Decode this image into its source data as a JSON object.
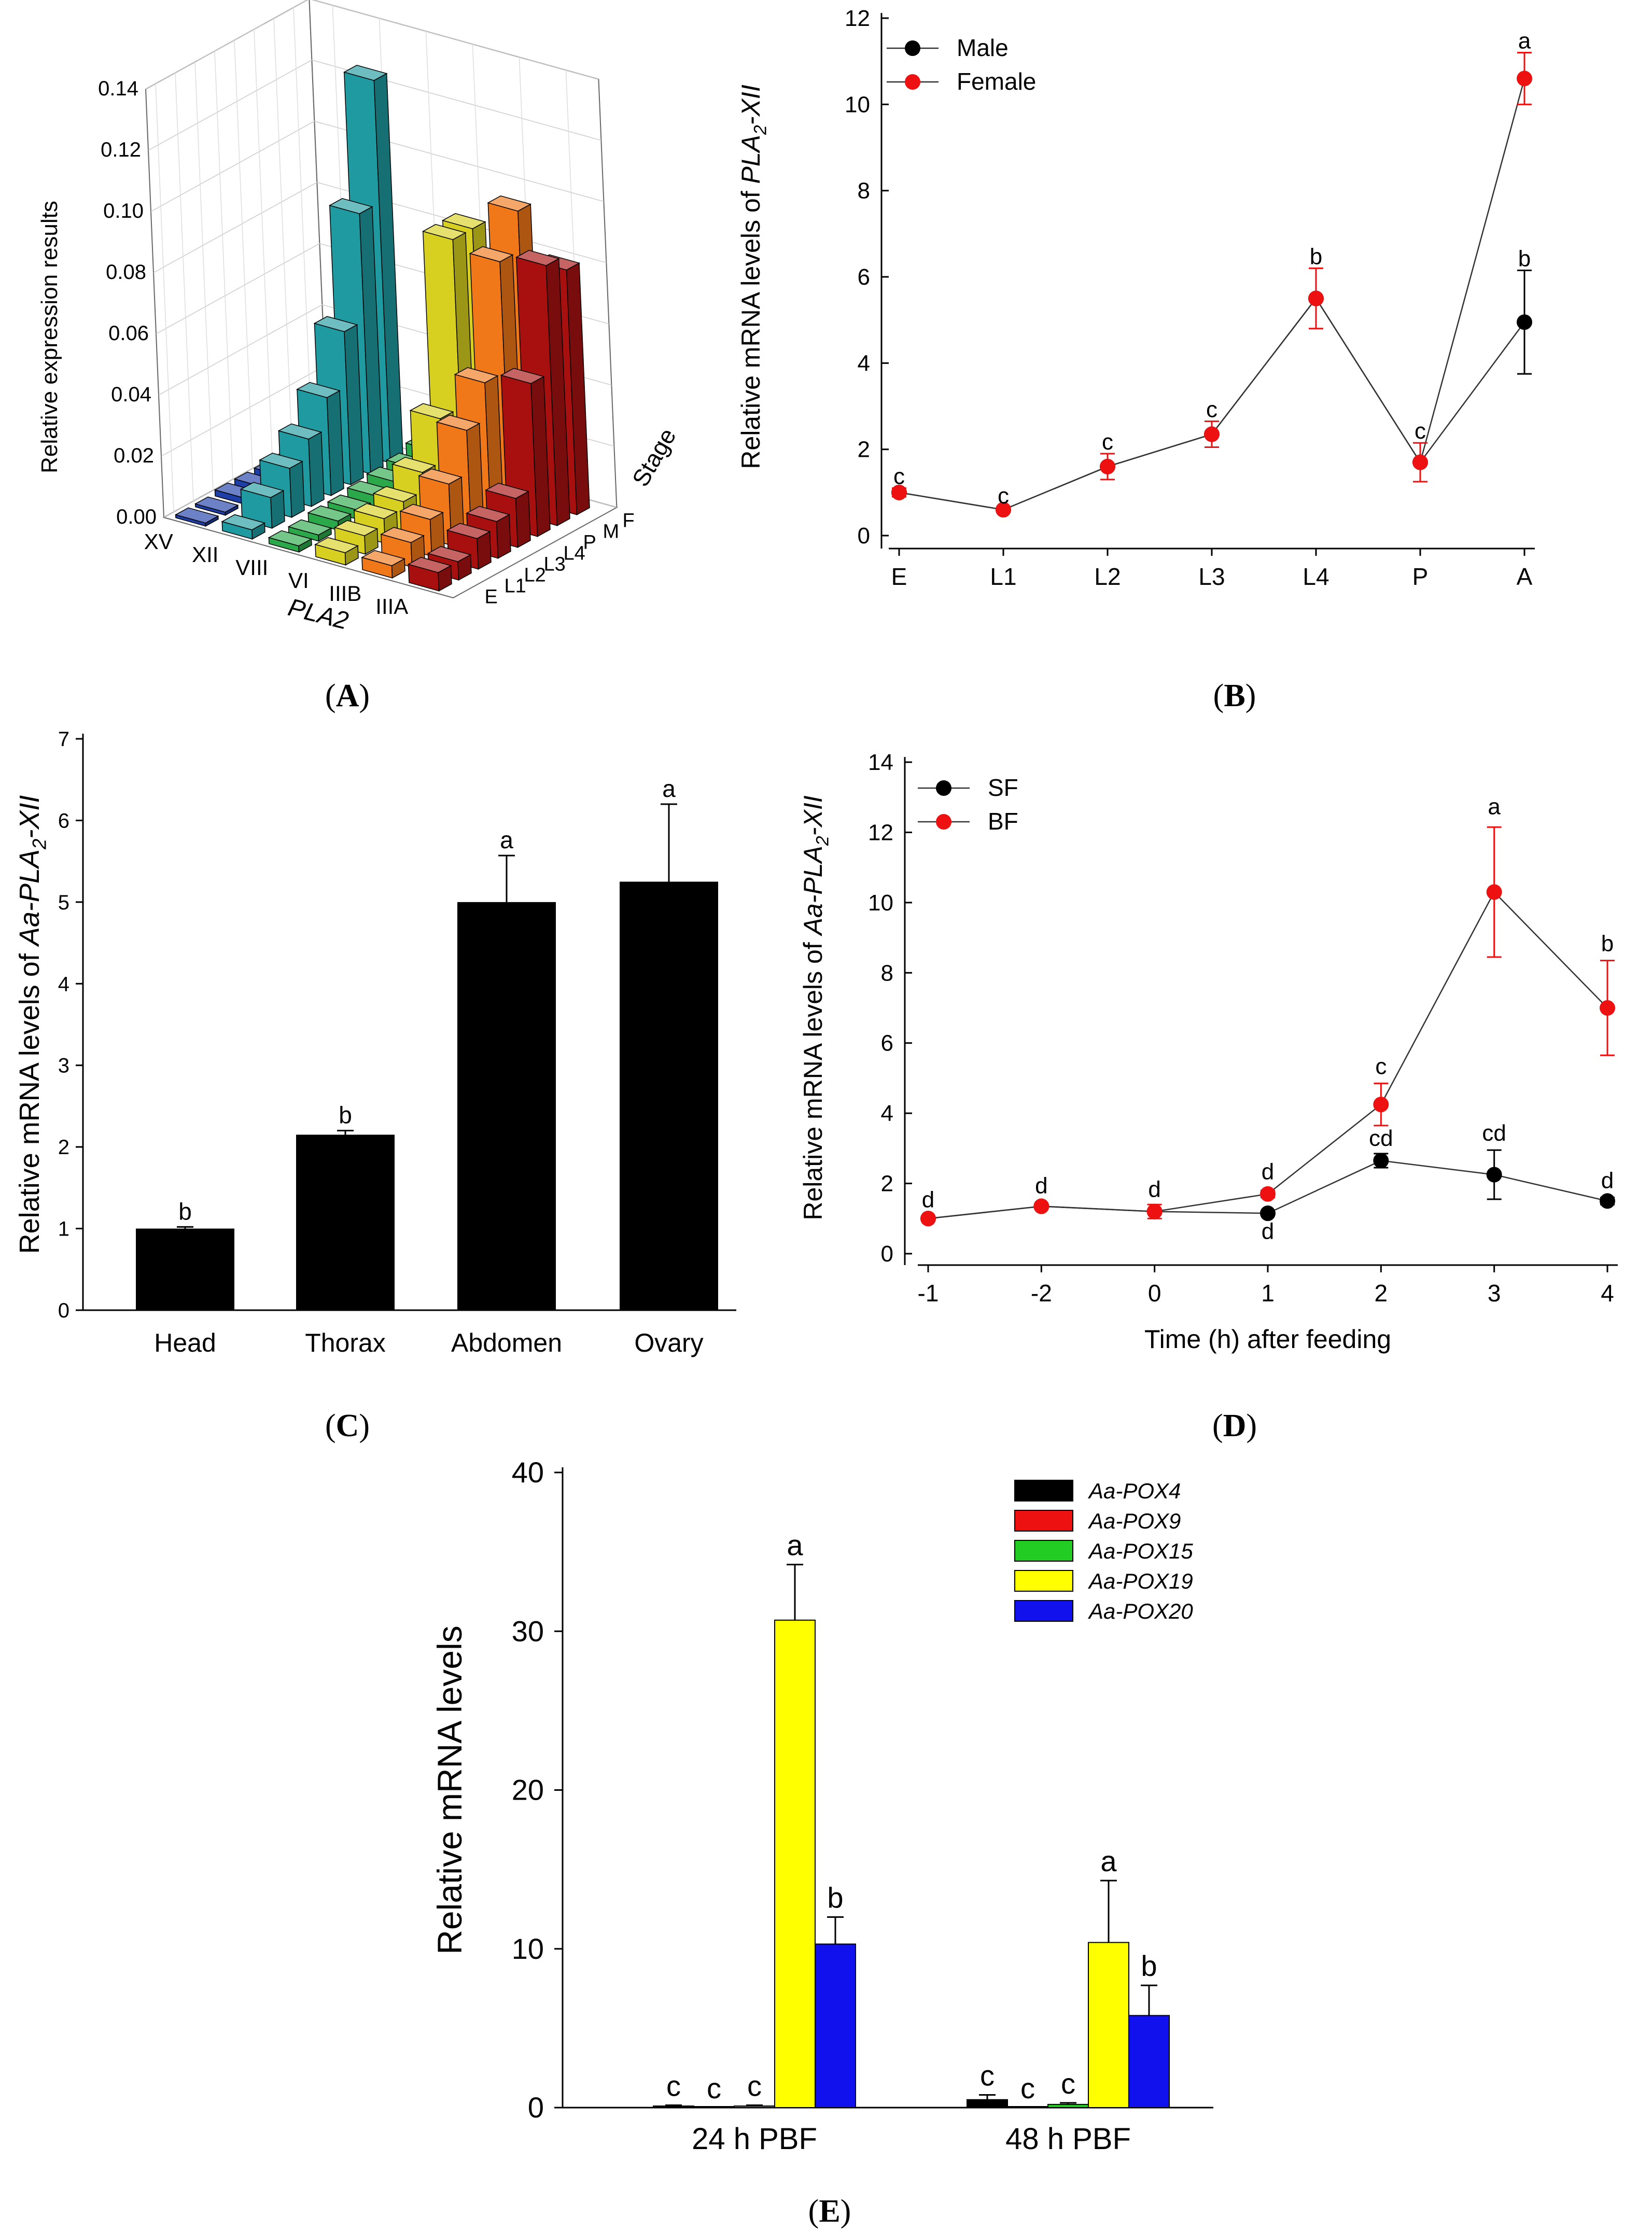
{
  "chart_data": [
    {
      "panel": "A",
      "type": "bar3d",
      "panel_label": "A",
      "zlabel": "Relative expression results",
      "xlabel": "PLA2",
      "ylabel": "Stage",
      "z_ticks": [
        "0.00",
        "0.02",
        "0.04",
        "0.06",
        "0.08",
        "0.10",
        "0.12",
        "0.14"
      ],
      "zlim": [
        0,
        0.14
      ],
      "categories": [
        "XV",
        "XII",
        "VIII",
        "VI",
        "IIIB",
        "IIIA"
      ],
      "stages": [
        "E",
        "L1",
        "L2",
        "L3",
        "L4",
        "P",
        "M",
        "F"
      ],
      "colors": [
        "#1f3fa8",
        "#1f9aa0",
        "#2aa84a",
        "#d8d020",
        "#f07818",
        "#a81010"
      ],
      "values": [
        [
          0.001,
          0.001,
          0.002,
          0.002,
          0.002,
          0.002,
          0.002,
          0.003
        ],
        [
          0.003,
          0.01,
          0.016,
          0.022,
          0.032,
          0.05,
          0.085,
          0.125
        ],
        [
          0.002,
          0.002,
          0.003,
          0.003,
          0.004,
          0.005,
          0.006,
          0.008
        ],
        [
          0.004,
          0.006,
          0.008,
          0.01,
          0.016,
          0.03,
          0.085,
          0.085
        ],
        [
          0.004,
          0.008,
          0.012,
          0.02,
          0.034,
          0.046,
          0.082,
          0.095
        ],
        [
          0.006,
          0.006,
          0.01,
          0.012,
          0.016,
          0.05,
          0.085,
          0.08
        ]
      ]
    },
    {
      "panel": "B",
      "type": "line",
      "panel_label": "B",
      "ylabel_pre": "Relative mRNA levels of ",
      "ylabel_gene": "PLA",
      "ylabel_sub": "2",
      "ylabel_post": "-XII",
      "categories": [
        "E",
        "L1",
        "L2",
        "L3",
        "L4",
        "P",
        "A"
      ],
      "ylim": [
        0,
        12
      ],
      "yticks": [
        "0",
        "2",
        "4",
        "6",
        "8",
        "10",
        "12"
      ],
      "series": [
        {
          "name": "Male",
          "color": "#000000",
          "values": [
            1.0,
            0.6,
            1.6,
            2.35,
            5.5,
            1.7,
            4.95
          ],
          "errors": [
            0,
            0,
            0,
            0,
            0,
            0,
            1.2
          ]
        },
        {
          "name": "Female",
          "color": "#ee1111",
          "values": [
            1.0,
            0.6,
            1.6,
            2.35,
            5.5,
            1.7,
            10.6
          ],
          "errors": [
            0.1,
            0.05,
            0.3,
            0.3,
            0.7,
            0.45,
            0.6
          ]
        }
      ],
      "letters": [
        {
          "i": 0,
          "text": "c",
          "y": 1.1
        },
        {
          "i": 1,
          "text": "c",
          "y": 0.65
        },
        {
          "i": 2,
          "text": "c",
          "y": 1.9
        },
        {
          "i": 3,
          "text": "c",
          "y": 2.65
        },
        {
          "i": 4,
          "text": "b",
          "y": 6.2
        },
        {
          "i": 5,
          "text": "c",
          "y": 2.15
        },
        {
          "i": 6,
          "text": "a",
          "y": 11.2
        },
        {
          "i": 6,
          "text": "b",
          "y": 6.15
        }
      ]
    },
    {
      "panel": "C",
      "type": "bar",
      "panel_label": "C",
      "ylabel_pre": "Relative mRNA levels of ",
      "ylabel_gene": "Aa-PLA",
      "ylabel_sub": "2",
      "ylabel_post": "-XII",
      "categories": [
        "Head",
        "Thorax",
        "Abdomen",
        "Ovary"
      ],
      "values": [
        1.0,
        2.15,
        5.0,
        5.25
      ],
      "errors": [
        0.02,
        0.05,
        0.57,
        0.95
      ],
      "letters": [
        "b",
        "b",
        "a",
        "a"
      ],
      "ylim": [
        0,
        7
      ],
      "yticks": [
        "0",
        "1",
        "2",
        "3",
        "4",
        "5",
        "6",
        "7"
      ],
      "color": "#000000"
    },
    {
      "panel": "D",
      "type": "line",
      "panel_label": "D",
      "ylabel_pre": "Relative mRNA levels of ",
      "ylabel_gene": "Aa-PLA",
      "ylabel_sub": "2",
      "ylabel_post": "-XII",
      "xlabel": "Time (h) after feeding",
      "categories": [
        "-1",
        "-2",
        "0",
        "1",
        "2",
        "3",
        "4"
      ],
      "ylim": [
        0,
        14
      ],
      "yticks": [
        "0",
        "2",
        "4",
        "6",
        "8",
        "10",
        "12",
        "14"
      ],
      "series": [
        {
          "name": "SF",
          "color": "#000000",
          "values": [
            1.0,
            1.35,
            1.2,
            1.15,
            2.65,
            2.25,
            1.5
          ],
          "errors": [
            0,
            0,
            0,
            0,
            0.2,
            0.7,
            0.1
          ]
        },
        {
          "name": "BF",
          "color": "#ee1111",
          "values": [
            1.0,
            1.35,
            1.2,
            1.7,
            4.25,
            10.3,
            7.0
          ],
          "errors": [
            0.05,
            0.05,
            0.2,
            0.1,
            0.6,
            1.85,
            1.35
          ]
        }
      ],
      "letters": [
        {
          "i": 0,
          "text": "d",
          "y": 1.2
        },
        {
          "i": 1,
          "text": "d",
          "y": 1.6
        },
        {
          "i": 2,
          "text": "d",
          "y": 1.5
        },
        {
          "i": 3,
          "text": "d",
          "y": 2.0
        },
        {
          "i": 3,
          "text": "d",
          "y": 0.3
        },
        {
          "i": 4,
          "text": "c",
          "y": 5.0
        },
        {
          "i": 4,
          "text": "cd",
          "y": 2.95
        },
        {
          "i": 5,
          "text": "a",
          "y": 12.4
        },
        {
          "i": 5,
          "text": "cd",
          "y": 3.1
        },
        {
          "i": 6,
          "text": "b",
          "y": 8.5
        },
        {
          "i": 6,
          "text": "d",
          "y": 1.75
        }
      ]
    },
    {
      "panel": "E",
      "type": "bar",
      "panel_label": "E",
      "ylabel": "Relative mRNA levels",
      "groups": [
        "24 h PBF",
        "48 h PBF"
      ],
      "ylim": [
        0,
        40
      ],
      "yticks": [
        "0",
        "10",
        "20",
        "30",
        "40"
      ],
      "series": [
        {
          "name": "Aa-POX4",
          "color": "#000000",
          "values": [
            0.1,
            0.5
          ],
          "errors": [
            0.05,
            0.3
          ],
          "letters": [
            "c",
            "c"
          ]
        },
        {
          "name": "Aa-POX9",
          "color": "#ee1111",
          "values": [
            0.0,
            0.0
          ],
          "errors": [
            0,
            0
          ],
          "letters": [
            "c",
            "c"
          ]
        },
        {
          "name": "Aa-POX15",
          "color": "#22cc22",
          "values": [
            0.1,
            0.2
          ],
          "errors": [
            0.05,
            0.1
          ],
          "letters": [
            "c",
            "c"
          ]
        },
        {
          "name": "Aa-POX19",
          "color": "#ffff00",
          "values": [
            30.7,
            10.4
          ],
          "errors": [
            3.5,
            3.9
          ],
          "letters": [
            "a",
            "a"
          ]
        },
        {
          "name": "Aa-POX20",
          "color": "#1111ee",
          "values": [
            10.3,
            5.8
          ],
          "errors": [
            1.7,
            1.9
          ],
          "letters": [
            "b",
            "b"
          ]
        }
      ]
    }
  ]
}
